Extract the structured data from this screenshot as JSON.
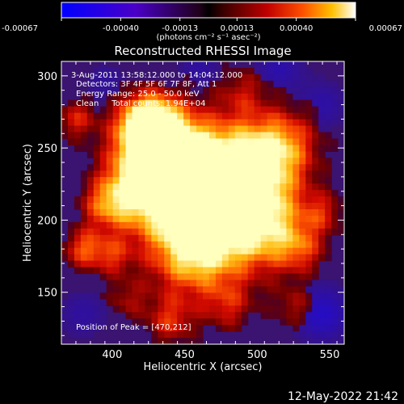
{
  "colorbar": {
    "ticks": [
      "-0.00067",
      "-0.00040",
      "-0.00013",
      "0.00013",
      "0.00040",
      "0.00067"
    ],
    "tick_values": [
      -0.00067,
      -0.0004,
      -0.00013,
      0.00013,
      0.0004,
      0.00067
    ],
    "range": [
      -0.00067,
      0.00067
    ],
    "unit_label": "(photons cm⁻² s⁻¹ asec⁻²)"
  },
  "chart_data": {
    "type": "heatmap",
    "title": "Reconstructed RHESSI Image",
    "xlabel": "Heliocentric X (arcsec)",
    "ylabel": "Heliocentric Y (arcsec)",
    "xlim": [
      365,
      560
    ],
    "ylim": [
      114,
      310
    ],
    "x_ticks": [
      400,
      450,
      500,
      550
    ],
    "y_ticks": [
      150,
      200,
      250,
      300
    ],
    "peak_position": [
      470,
      212
    ],
    "annotations": [
      "3-Aug-2011 13:58:12.000 to 14:04:12.000",
      "Detectors: 3F 4F 5F 6F 7F 8F, Att 1",
      "Energy Range: 25.0 - 50.0 keV",
      "Clean     Total counts: 1.94E+04"
    ],
    "peak_label": "Position of Peak = [470,212]",
    "colormap": "red-temperature"
  },
  "footer": {
    "timestamp": "12-May-2022 21:42"
  }
}
